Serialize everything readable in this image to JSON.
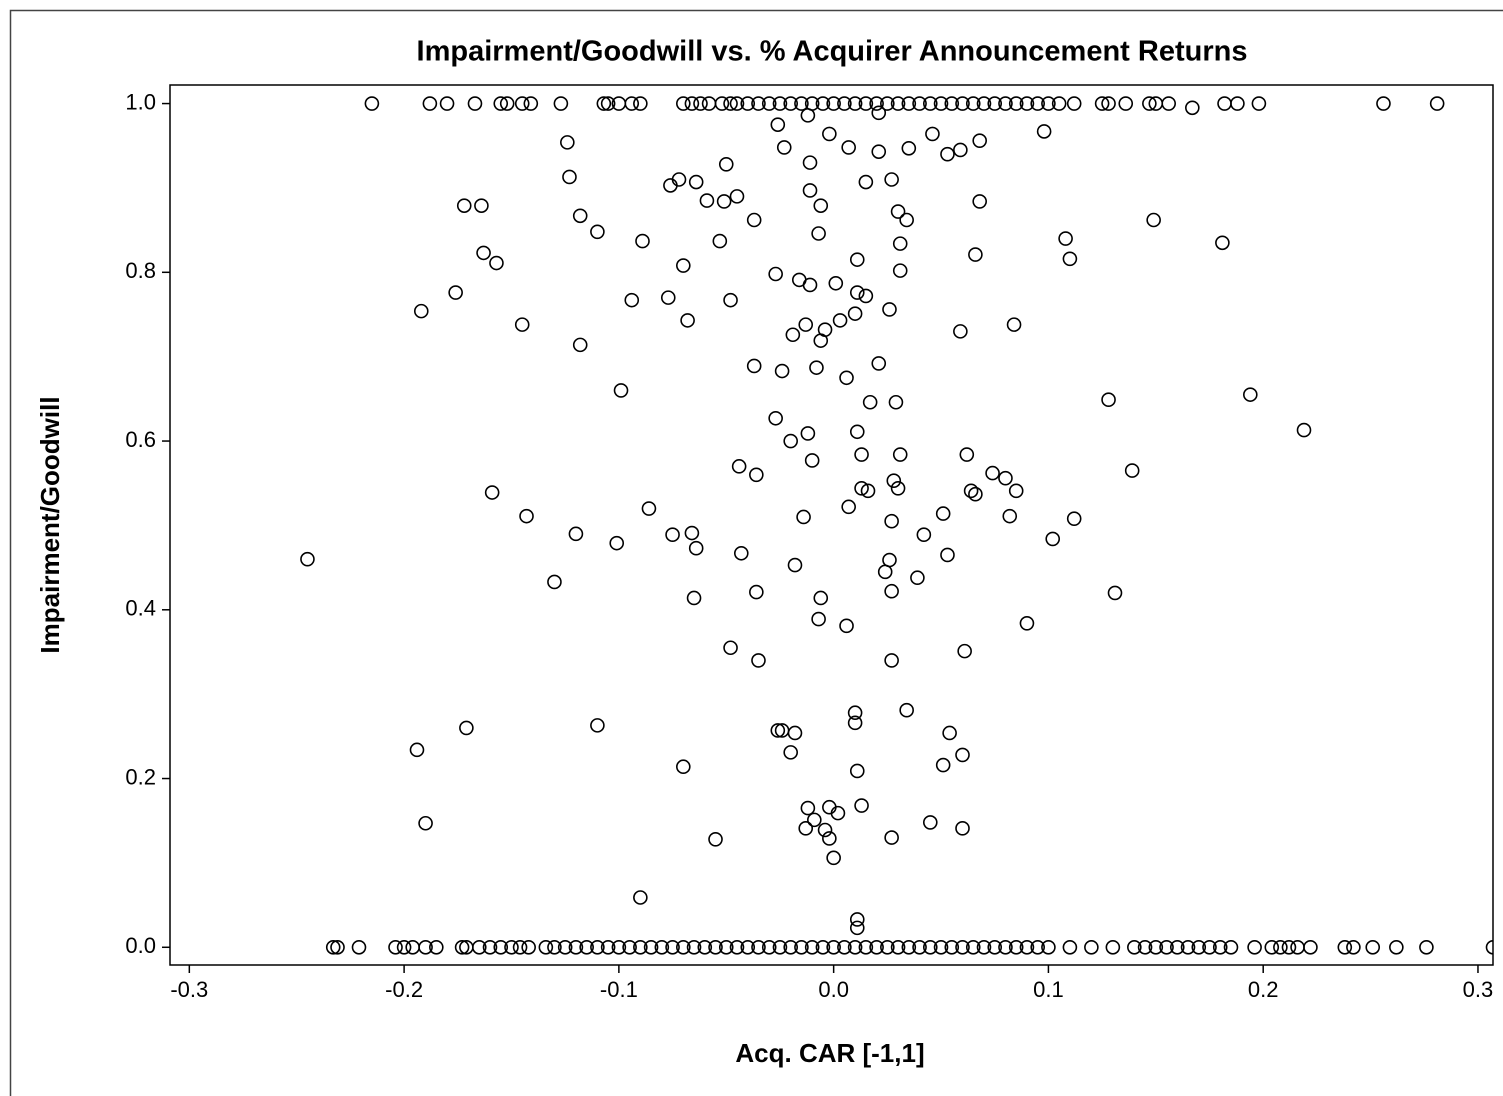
{
  "chart_data": {
    "type": "scatter",
    "title": "Impairment/Goodwill vs. % Acquirer Announcement Returns",
    "x_label": "Acq. CAR [-1,1]",
    "y_label": "Impairment/Goodwill",
    "marker_color": "#000000",
    "xlim": [
      -0.309,
      0.307
    ],
    "ylim": [
      -0.021,
      1.022
    ],
    "xticks": [
      -0.3,
      -0.2,
      -0.1,
      {
        "value": 0,
        "label": "0.0"
      },
      0.1,
      0.2,
      0.3
    ],
    "yticks": [
      {
        "value": 0,
        "label": "0.0"
      },
      0.2,
      0.4,
      0.6,
      0.8,
      {
        "value": 1,
        "label": "1.0"
      }
    ],
    "x": [
      -0.215,
      -0.188,
      -0.18,
      -0.167,
      -0.155,
      -0.152,
      -0.145,
      -0.141,
      -0.127,
      -0.107,
      -0.105,
      -0.1,
      -0.094,
      -0.09,
      -0.07,
      -0.066,
      -0.062,
      -0.058,
      -0.052,
      -0.048,
      -0.045,
      -0.04,
      -0.035,
      -0.03,
      -0.025,
      -0.02,
      -0.015,
      -0.01,
      -0.005,
      0,
      0.005,
      0.01,
      0.015,
      0.02,
      0.025,
      0.03,
      0.035,
      0.04,
      0.045,
      0.05,
      0.055,
      0.06,
      0.065,
      0.07,
      0.075,
      0.08,
      0.085,
      0.09,
      0.095,
      0.1,
      0.105,
      0.112,
      0.125,
      0.128,
      0.136,
      0.147,
      0.15,
      0.156,
      0.182,
      0.188,
      0.198,
      0.256,
      0.281,
      -0.233,
      -0.231,
      -0.221,
      -0.204,
      -0.2,
      -0.196,
      -0.19,
      -0.185,
      -0.173,
      -0.171,
      -0.165,
      -0.16,
      -0.155,
      -0.15,
      -0.146,
      -0.142,
      -0.134,
      -0.13,
      -0.125,
      -0.12,
      -0.115,
      -0.11,
      -0.105,
      -0.1,
      -0.09,
      -0.08,
      -0.07,
      -0.06,
      -0.05,
      -0.04,
      -0.03,
      -0.02,
      -0.01,
      0,
      0.01,
      0.02,
      0.03,
      0.04,
      0.05,
      0.06,
      0.07,
      0.08,
      0.09,
      0.1,
      0.11,
      0.12,
      0.13,
      0.14,
      0.145,
      0.15,
      0.155,
      0.16,
      0.165,
      0.17,
      0.175,
      0.18,
      0.185,
      0.196,
      0.204,
      0.208,
      0.212,
      0.216,
      0.222,
      0.238,
      0.242,
      0.251,
      0.262,
      0.276,
      0.307,
      -0.095,
      -0.085,
      -0.075,
      -0.065,
      -0.055,
      -0.045,
      -0.035,
      -0.025,
      -0.015,
      -0.005,
      0.005,
      0.015,
      0.025,
      0.035,
      0.045,
      0.055,
      0.065,
      0.075,
      0.085,
      0.095,
      -0.124,
      -0.123,
      -0.172,
      -0.164,
      -0.118,
      -0.11,
      -0.163,
      -0.157,
      -0.176,
      -0.192,
      -0.145,
      -0.118,
      -0.099,
      -0.245,
      -0.159,
      -0.143,
      -0.12,
      -0.13,
      -0.101,
      -0.086,
      -0.194,
      -0.19,
      -0.171,
      -0.11,
      -0.09,
      -0.05,
      -0.045,
      -0.051,
      -0.059,
      -0.064,
      -0.072,
      -0.076,
      -0.037,
      -0.053,
      -0.089,
      -0.07,
      -0.094,
      -0.077,
      -0.048,
      -0.068,
      -0.026,
      -0.023,
      -0.012,
      -0.002,
      0.007,
      0.021,
      0.021,
      -0.011,
      -0.011,
      -0.006,
      0.015,
      0.027,
      0.035,
      0.046,
      0.053,
      0.059,
      0.068,
      0.098,
      0.03,
      0.034,
      0.031,
      0.031,
      0.068,
      0.066,
      0.011,
      -0.007,
      -0.027,
      -0.016,
      -0.011,
      0.001,
      0.011,
      0.015,
      0.026,
      0.01,
      0.003,
      -0.013,
      -0.004,
      -0.019,
      -0.006,
      -0.037,
      -0.024,
      -0.008,
      0.006,
      0.021,
      0.017,
      0.029,
      0.059,
      0.084,
      0.108,
      0.11,
      0.149,
      0.181,
      0.128,
      0.194,
      0.219,
      -0.027,
      -0.02,
      -0.012,
      -0.01,
      -0.044,
      -0.036,
      0.011,
      0.013,
      0.031,
      0.062,
      0.028,
      0.03,
      0.013,
      0.016,
      0.007,
      0.027,
      -0.014,
      0.064,
      0.066,
      0.074,
      0.08,
      0.085,
      0.082,
      0.112,
      0.139,
      0.051,
      0.042,
      0.102,
      -0.066,
      -0.075,
      -0.064,
      -0.043,
      -0.018,
      0.026,
      0.024,
      0.039,
      0.053,
      0.027,
      -0.036,
      -0.065,
      -0.006,
      -0.007,
      0.006,
      0.09,
      0.131,
      -0.048,
      -0.035,
      0.027,
      0.061,
      0.034,
      0.01,
      0.01,
      -0.026,
      -0.024,
      -0.018,
      0.054,
      -0.02,
      0.06,
      0.051,
      -0.07,
      0.011,
      -0.012,
      -0.002,
      0.002,
      0.013,
      -0.009,
      -0.013,
      -0.004,
      -0.002,
      0.027,
      0.045,
      0.06,
      -0.055,
      0.0,
      0.011,
      0.011,
      0.167
    ],
    "values": [
      1,
      1,
      1,
      1,
      1,
      1,
      1,
      1,
      1,
      1,
      1,
      1,
      1,
      1,
      1,
      1,
      1,
      1,
      1,
      1,
      1,
      1,
      1,
      1,
      1,
      1,
      1,
      1,
      1,
      1,
      1,
      1,
      1,
      1,
      1,
      1,
      1,
      1,
      1,
      1,
      1,
      1,
      1,
      1,
      1,
      1,
      1,
      1,
      1,
      1,
      1,
      1,
      1,
      1,
      1,
      1,
      1,
      1,
      1,
      1,
      1,
      1,
      1,
      0,
      0,
      0,
      0,
      0,
      0,
      0,
      0,
      0,
      0,
      0,
      0,
      0,
      0,
      0,
      0,
      0,
      0,
      0,
      0,
      0,
      0,
      0,
      0,
      0,
      0,
      0,
      0,
      0,
      0,
      0,
      0,
      0,
      0,
      0,
      0,
      0,
      0,
      0,
      0,
      0,
      0,
      0,
      0,
      0,
      0,
      0,
      0,
      0,
      0,
      0,
      0,
      0,
      0,
      0,
      0,
      0,
      0,
      0,
      0,
      0,
      0,
      0,
      0,
      0,
      0,
      0,
      0,
      0,
      0,
      0,
      0,
      0,
      0,
      0,
      0,
      0,
      0,
      0,
      0,
      0,
      0,
      0,
      0,
      0,
      0,
      0,
      0,
      0,
      0.954,
      0.913,
      0.879,
      0.879,
      0.867,
      0.848,
      0.823,
      0.811,
      0.776,
      0.754,
      0.738,
      0.714,
      0.66,
      0.46,
      0.539,
      0.511,
      0.49,
      0.433,
      0.479,
      0.52,
      0.234,
      0.147,
      0.26,
      0.263,
      0.059,
      0.928,
      0.89,
      0.884,
      0.885,
      0.907,
      0.91,
      0.903,
      0.862,
      0.837,
      0.837,
      0.808,
      0.767,
      0.77,
      0.767,
      0.743,
      0.975,
      0.948,
      0.986,
      0.964,
      0.948,
      0.943,
      0.989,
      0.93,
      0.897,
      0.879,
      0.907,
      0.91,
      0.947,
      0.964,
      0.94,
      0.945,
      0.956,
      0.967,
      0.872,
      0.862,
      0.834,
      0.802,
      0.884,
      0.821,
      0.815,
      0.846,
      0.798,
      0.791,
      0.785,
      0.787,
      0.776,
      0.772,
      0.756,
      0.751,
      0.743,
      0.738,
      0.732,
      0.726,
      0.719,
      0.689,
      0.683,
      0.687,
      0.675,
      0.692,
      0.646,
      0.646,
      0.73,
      0.738,
      0.84,
      0.816,
      0.862,
      0.835,
      0.649,
      0.655,
      0.613,
      0.627,
      0.6,
      0.609,
      0.577,
      0.57,
      0.56,
      0.611,
      0.584,
      0.584,
      0.584,
      0.553,
      0.544,
      0.544,
      0.541,
      0.522,
      0.505,
      0.51,
      0.541,
      0.537,
      0.562,
      0.556,
      0.541,
      0.511,
      0.508,
      0.565,
      0.514,
      0.489,
      0.484,
      0.491,
      0.489,
      0.473,
      0.467,
      0.453,
      0.459,
      0.445,
      0.438,
      0.465,
      0.422,
      0.421,
      0.414,
      0.414,
      0.389,
      0.381,
      0.384,
      0.42,
      0.355,
      0.34,
      0.34,
      0.351,
      0.281,
      0.278,
      0.266,
      0.257,
      0.257,
      0.254,
      0.254,
      0.231,
      0.228,
      0.216,
      0.214,
      0.209,
      0.165,
      0.166,
      0.159,
      0.168,
      0.151,
      0.141,
      0.139,
      0.129,
      0.13,
      0.148,
      0.141,
      0.128,
      0.106,
      0.033,
      0.023,
      0.995
    ]
  }
}
